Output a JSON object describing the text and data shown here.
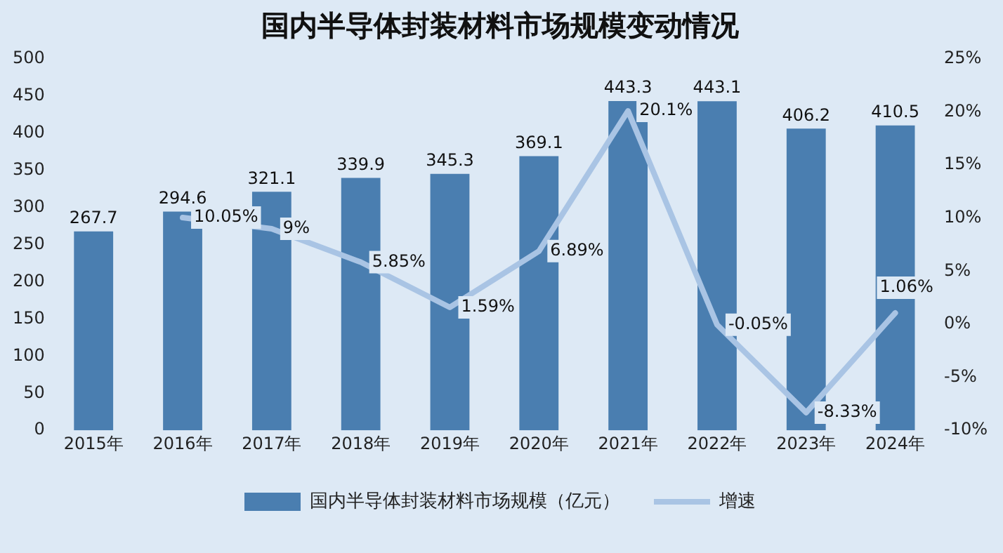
{
  "chart_data": {
    "type": "bar",
    "title": "国内半导体封装材料市场规模变动情况",
    "categories": [
      "2015年",
      "2016年",
      "2017年",
      "2018年",
      "2019年",
      "2020年",
      "2021年",
      "2022年",
      "2023年",
      "2024年"
    ],
    "series": [
      {
        "name": "国内半导体封装材料市场规模（亿元）",
        "color": "#4a7eb0",
        "values": [
          267.7,
          294.6,
          321.1,
          339.9,
          345.3,
          369.1,
          443.3,
          443.1,
          406.2,
          410.5
        ],
        "value_labels": [
          "267.7",
          "294.6",
          "321.1",
          "339.9",
          "345.3",
          "369.1",
          "443.3",
          "443.1",
          "406.2",
          "410.5"
        ]
      },
      {
        "name": "增速",
        "type": "line",
        "axis": "y2",
        "color": "#a9c4e4",
        "values": [
          null,
          10.05,
          9,
          5.85,
          1.59,
          6.89,
          20.1,
          -0.05,
          -8.33,
          1.06
        ],
        "value_labels": [
          null,
          "10.05%",
          "9%",
          "5.85%",
          "1.59%",
          "6.89%",
          "20.1%",
          "-0.05%",
          "-8.33%",
          "1.06%"
        ]
      }
    ],
    "ylim": [
      0,
      500
    ],
    "yticks": [
      0,
      50,
      100,
      150,
      200,
      250,
      300,
      350,
      400,
      450,
      500
    ],
    "y2lim": [
      -10,
      25
    ],
    "y2ticks": [
      {
        "value": -10,
        "label": "-10%"
      },
      {
        "value": -5,
        "label": "-5%"
      },
      {
        "value": 0,
        "label": "0%"
      },
      {
        "value": 5,
        "label": "5%"
      },
      {
        "value": 10,
        "label": "10%"
      },
      {
        "value": 15,
        "label": "15%"
      },
      {
        "value": 20,
        "label": "20%"
      },
      {
        "value": 25,
        "label": "25%"
      }
    ],
    "grid": false,
    "legend": "bottom",
    "marker": "none",
    "line_style": "solid"
  }
}
